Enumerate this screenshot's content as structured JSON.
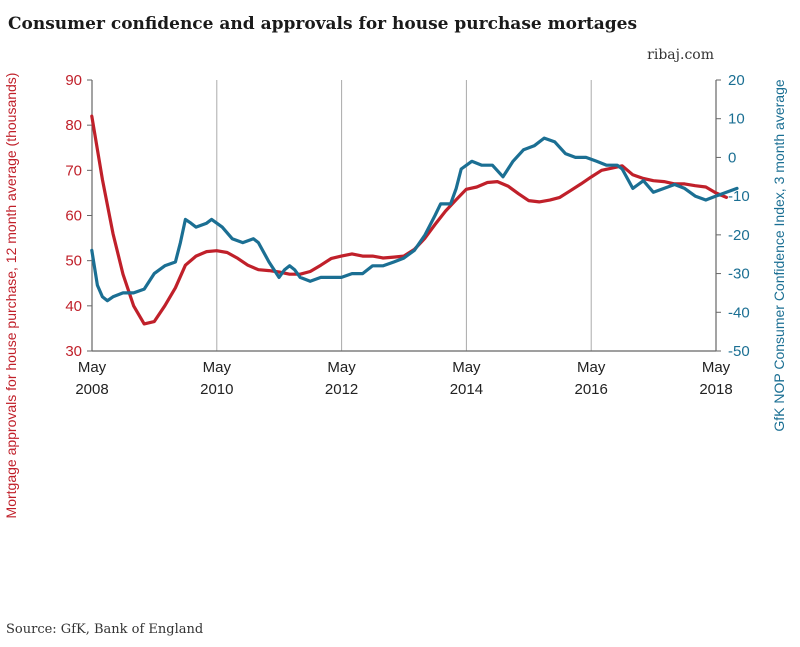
{
  "header": {
    "title": "Consumer confidence and approvals for house purchase mortages",
    "site": "ribaj.com"
  },
  "footer": {
    "source": "Source: GfK, Bank of England"
  },
  "colors": {
    "mortgage": "#c0202a",
    "confidence": "#1b6f93",
    "grid": "#aaaaaa",
    "axis": "#666666"
  },
  "chart_data": {
    "type": "line",
    "title": "Consumer confidence and approvals for house purchase mortages",
    "x_ticks": [
      {
        "x": 2008.333,
        "month": "May",
        "year": "2008"
      },
      {
        "x": 2010.333,
        "month": "May",
        "year": "2010"
      },
      {
        "x": 2012.333,
        "month": "May",
        "year": "2012"
      },
      {
        "x": 2014.333,
        "month": "May",
        "year": "2014"
      },
      {
        "x": 2016.333,
        "month": "May",
        "year": "2016"
      },
      {
        "x": 2018.333,
        "month": "May",
        "year": "2018"
      }
    ],
    "xlim": [
      2008.333,
      2018.333
    ],
    "y_left": {
      "label": "Mortgage approvals for house purchase, 12 month average (thousands)",
      "range": [
        30,
        90
      ],
      "ticks": [
        "30",
        "40",
        "50",
        "60",
        "70",
        "80",
        "90"
      ]
    },
    "y_right": {
      "label": "GfK NOP Consumer Confidence Index, 3 month average",
      "range": [
        -50,
        20
      ],
      "ticks": [
        "-50",
        "-40",
        "-30",
        "-20",
        "-10",
        "0",
        "10",
        "20"
      ]
    },
    "grid": "vertical",
    "series": [
      {
        "axis": "left",
        "points": [
          [
            2008.33,
            82
          ],
          [
            2008.5,
            68
          ],
          [
            2008.67,
            56
          ],
          [
            2008.83,
            47
          ],
          [
            2009.0,
            40
          ],
          [
            2009.17,
            36
          ],
          [
            2009.33,
            36.5
          ],
          [
            2009.5,
            40
          ],
          [
            2009.67,
            44
          ],
          [
            2009.83,
            49
          ],
          [
            2010.0,
            51
          ],
          [
            2010.17,
            52
          ],
          [
            2010.33,
            52.2
          ],
          [
            2010.5,
            51.8
          ],
          [
            2010.67,
            50.5
          ],
          [
            2010.83,
            49
          ],
          [
            2011.0,
            48
          ],
          [
            2011.17,
            47.8
          ],
          [
            2011.33,
            47.5
          ],
          [
            2011.5,
            47
          ],
          [
            2011.67,
            47
          ],
          [
            2011.83,
            47.6
          ],
          [
            2012.0,
            49
          ],
          [
            2012.17,
            50.5
          ],
          [
            2012.33,
            51
          ],
          [
            2012.5,
            51.5
          ],
          [
            2012.67,
            51
          ],
          [
            2012.83,
            51
          ],
          [
            2013.0,
            50.6
          ],
          [
            2013.17,
            50.8
          ],
          [
            2013.33,
            51
          ],
          [
            2013.5,
            52.5
          ],
          [
            2013.67,
            55
          ],
          [
            2013.83,
            58
          ],
          [
            2014.0,
            61
          ],
          [
            2014.17,
            63.5
          ],
          [
            2014.33,
            65.8
          ],
          [
            2014.5,
            66.3
          ],
          [
            2014.67,
            67.3
          ],
          [
            2014.83,
            67.5
          ],
          [
            2015.0,
            66.5
          ],
          [
            2015.17,
            64.8
          ],
          [
            2015.33,
            63.3
          ],
          [
            2015.5,
            63
          ],
          [
            2015.67,
            63.4
          ],
          [
            2015.83,
            64
          ],
          [
            2016.0,
            65.5
          ],
          [
            2016.17,
            67
          ],
          [
            2016.33,
            68.5
          ],
          [
            2016.5,
            70
          ],
          [
            2016.67,
            70.5
          ],
          [
            2016.83,
            71
          ],
          [
            2017.0,
            69
          ],
          [
            2017.17,
            68.2
          ],
          [
            2017.33,
            67.7
          ],
          [
            2017.5,
            67.5
          ],
          [
            2017.67,
            67
          ],
          [
            2017.83,
            67
          ],
          [
            2018.0,
            66.6
          ],
          [
            2018.17,
            66.3
          ],
          [
            2018.33,
            65
          ],
          [
            2018.5,
            64
          ]
        ]
      },
      {
        "axis": "right",
        "points": [
          [
            2008.33,
            -24
          ],
          [
            2008.42,
            -33
          ],
          [
            2008.5,
            -36
          ],
          [
            2008.58,
            -37
          ],
          [
            2008.67,
            -36
          ],
          [
            2008.83,
            -35
          ],
          [
            2009.0,
            -35
          ],
          [
            2009.17,
            -34
          ],
          [
            2009.33,
            -30
          ],
          [
            2009.5,
            -28
          ],
          [
            2009.67,
            -27
          ],
          [
            2009.75,
            -22
          ],
          [
            2009.83,
            -16
          ],
          [
            2009.92,
            -17
          ],
          [
            2010.0,
            -18
          ],
          [
            2010.17,
            -17
          ],
          [
            2010.25,
            -16
          ],
          [
            2010.42,
            -18
          ],
          [
            2010.58,
            -21
          ],
          [
            2010.75,
            -22
          ],
          [
            2010.92,
            -21
          ],
          [
            2011.0,
            -22
          ],
          [
            2011.17,
            -27
          ],
          [
            2011.33,
            -31
          ],
          [
            2011.42,
            -29
          ],
          [
            2011.5,
            -28
          ],
          [
            2011.58,
            -29
          ],
          [
            2011.67,
            -31
          ],
          [
            2011.83,
            -32
          ],
          [
            2012.0,
            -31
          ],
          [
            2012.17,
            -31
          ],
          [
            2012.33,
            -31
          ],
          [
            2012.5,
            -30
          ],
          [
            2012.67,
            -30
          ],
          [
            2012.83,
            -28
          ],
          [
            2013.0,
            -28
          ],
          [
            2013.17,
            -27
          ],
          [
            2013.33,
            -26
          ],
          [
            2013.5,
            -24
          ],
          [
            2013.67,
            -20
          ],
          [
            2013.83,
            -15
          ],
          [
            2013.92,
            -12
          ],
          [
            2014.08,
            -12
          ],
          [
            2014.17,
            -8
          ],
          [
            2014.25,
            -3
          ],
          [
            2014.42,
            -1
          ],
          [
            2014.58,
            -2
          ],
          [
            2014.75,
            -2
          ],
          [
            2014.92,
            -5
          ],
          [
            2015.08,
            -1
          ],
          [
            2015.25,
            2
          ],
          [
            2015.42,
            3
          ],
          [
            2015.58,
            5
          ],
          [
            2015.75,
            4
          ],
          [
            2015.92,
            1
          ],
          [
            2016.08,
            0
          ],
          [
            2016.25,
            0
          ],
          [
            2016.42,
            -1
          ],
          [
            2016.58,
            -2
          ],
          [
            2016.75,
            -2
          ],
          [
            2016.83,
            -3
          ],
          [
            2017.0,
            -8
          ],
          [
            2017.17,
            -6
          ],
          [
            2017.33,
            -9
          ],
          [
            2017.5,
            -8
          ],
          [
            2017.67,
            -7
          ],
          [
            2017.83,
            -8
          ],
          [
            2018.0,
            -10
          ],
          [
            2018.17,
            -11
          ],
          [
            2018.33,
            -10
          ],
          [
            2018.5,
            -9
          ],
          [
            2018.67,
            -8
          ]
        ]
      }
    ]
  }
}
